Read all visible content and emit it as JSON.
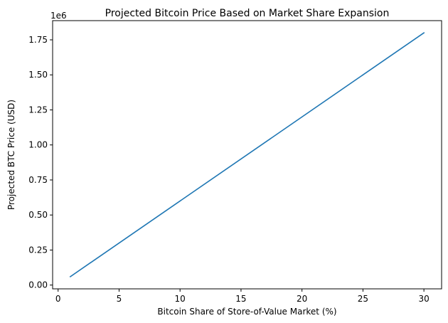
{
  "chart_data": {
    "type": "line",
    "title": "Projected Bitcoin Price Based on Market Share Expansion",
    "xlabel": "Bitcoin Share of Store-of-Value Market (%)",
    "ylabel": "Projected BTC Price (USD)",
    "y_offset_label": "1e6",
    "xlim": [
      -0.45,
      31.45
    ],
    "ylim": [
      -0.027,
      1.887
    ],
    "x_ticks": [
      0,
      5,
      10,
      15,
      20,
      25,
      30
    ],
    "x_tick_labels": [
      "0",
      "5",
      "10",
      "15",
      "20",
      "25",
      "30"
    ],
    "y_ticks": [
      0.0,
      0.25,
      0.5,
      0.75,
      1.0,
      1.25,
      1.5,
      1.75
    ],
    "y_tick_labels": [
      "0.00",
      "0.25",
      "0.50",
      "0.75",
      "1.00",
      "1.25",
      "1.50",
      "1.75"
    ],
    "grid": false,
    "series": [
      {
        "x": [
          1,
          30
        ],
        "y": [
          0.06,
          1.8
        ],
        "color": "#1f77b4"
      }
    ]
  }
}
